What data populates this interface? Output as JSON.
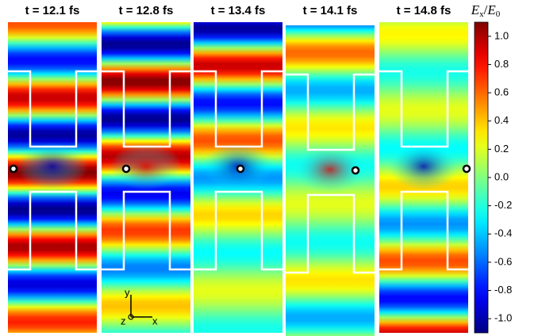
{
  "chart_data": {
    "type": "heatmap",
    "panels": [
      "t = 12.1 fs",
      "t = 12.8 fs",
      "t = 13.4 fs",
      "t = 14.1 fs",
      "t = 14.8 fs"
    ],
    "colorbar_label": {
      "symbol": "E",
      "sub": "x",
      "slash": "/",
      "symbol2": "E",
      "sub2": "0"
    },
    "zlim": [
      -1.1,
      1.1
    ],
    "zticks": [
      {
        "value": 1,
        "label": "1.0"
      },
      0.8,
      0.6,
      0.4,
      0.2,
      {
        "value": 0,
        "label": "0.0"
      },
      -0.2,
      -0.4,
      -0.6,
      -0.8,
      {
        "value": -1,
        "label": "-1.0"
      }
    ],
    "axis_labels": {
      "y": "y",
      "z": "z",
      "x": "x"
    }
  }
}
